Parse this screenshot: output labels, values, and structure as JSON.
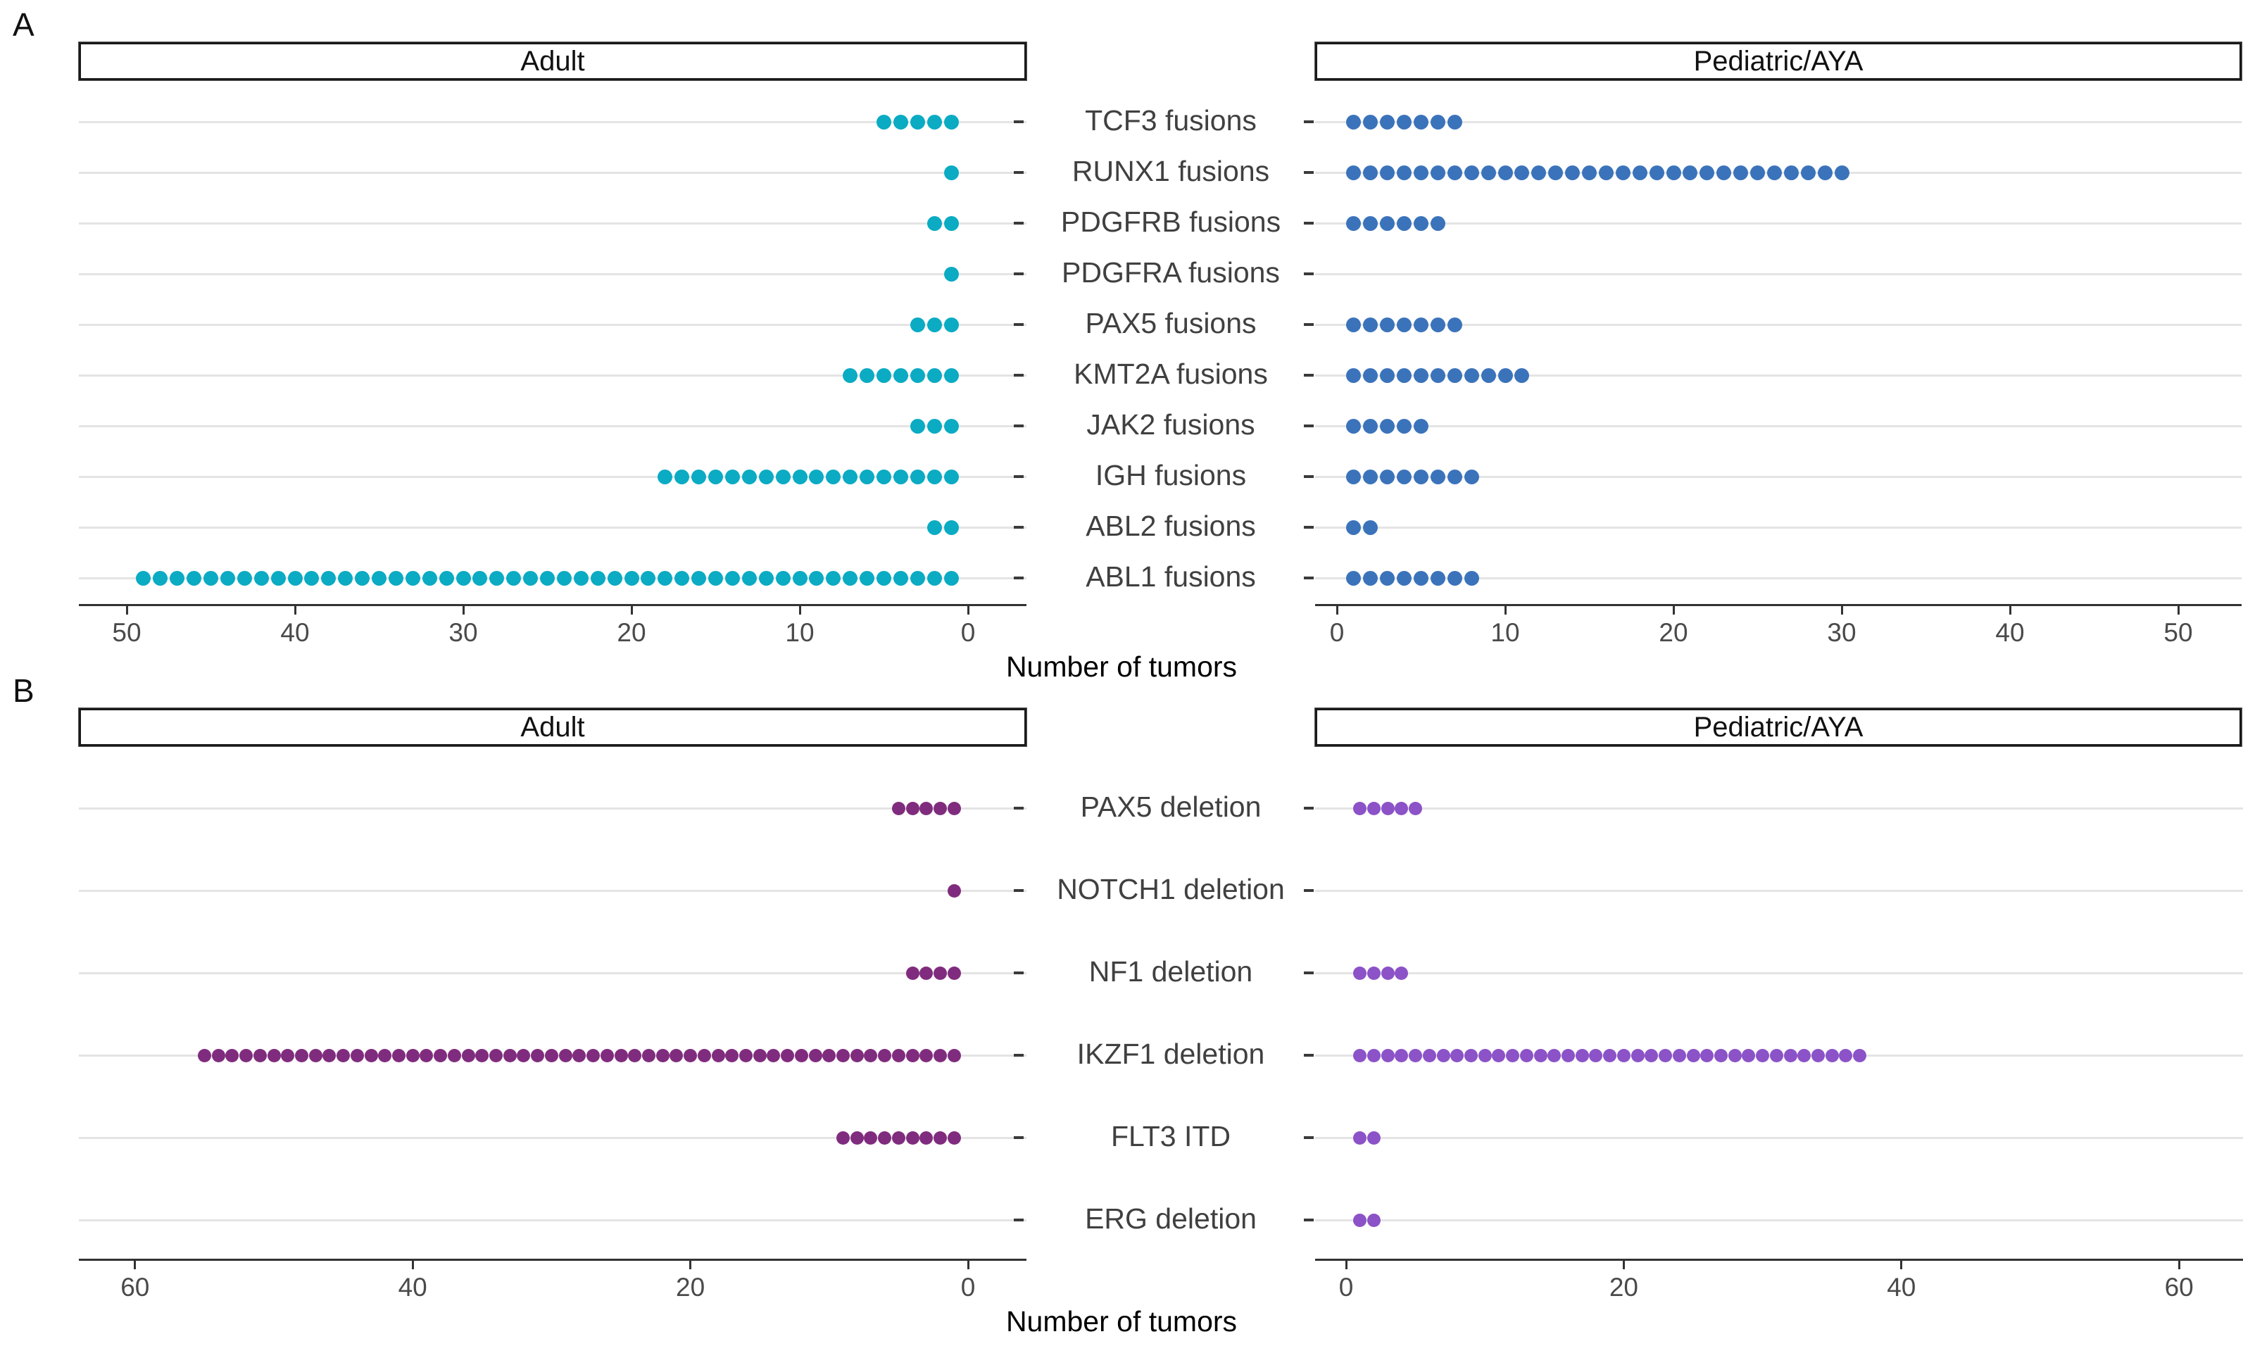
{
  "figure": {
    "section_a_label": "A",
    "section_b_label": "B",
    "column_headers": {
      "adult": "Adult",
      "pediatric": "Pediatric/AYA"
    },
    "x_axis_title": "Number of tumors"
  },
  "colors": {
    "adult_fusion_dot": "#0aabc3",
    "pediatric_fusion_dot": "#3b73bb",
    "adult_alteration_dot": "#802c7e",
    "pediatric_alteration_dot": "#8c52c7",
    "grid_line": "#e4e4e4",
    "axis_line": "#333333",
    "category_label": "#404040",
    "tick_label": "#4a4a4a"
  },
  "chart_data": [
    {
      "id": "panel_a",
      "type": "scatter",
      "subtype": "count-dot-plot",
      "section_label": "A",
      "categories": [
        "TCF3 fusions",
        "RUNX1 fusions",
        "PDGFRB fusions",
        "PDGFRA fusions",
        "PAX5 fusions",
        "KMT2A fusions",
        "JAK2 fusions",
        "IGH fusions",
        "ABL2 fusions",
        "ABL1 fusions"
      ],
      "series": [
        {
          "name": "Adult",
          "values": [
            5,
            1,
            2,
            1,
            3,
            7,
            3,
            18,
            2,
            49
          ],
          "axis_direction": "right-to-left",
          "x_ticks": [
            50,
            40,
            30,
            20,
            10,
            0
          ]
        },
        {
          "name": "Pediatric/AYA",
          "values": [
            7,
            30,
            6,
            0,
            7,
            11,
            5,
            8,
            2,
            8
          ],
          "axis_direction": "left-to-right",
          "x_ticks": [
            0,
            10,
            20,
            30,
            40,
            50
          ]
        }
      ],
      "dot_value": 1,
      "xlabel": "Number of tumors",
      "xlim": [
        0,
        50
      ],
      "grid": "horizontal-major-only",
      "legend": "none"
    },
    {
      "id": "panel_b",
      "type": "scatter",
      "subtype": "count-dot-plot",
      "section_label": "B",
      "categories": [
        "PAX5 deletion",
        "NOTCH1 deletion",
        "NF1 deletion",
        "IKZF1 deletion",
        "FLT3 ITD",
        "ERG deletion"
      ],
      "series": [
        {
          "name": "Adult",
          "values": [
            5,
            1,
            4,
            55,
            9,
            0
          ],
          "axis_direction": "right-to-left",
          "x_ticks": [
            60,
            40,
            20,
            0
          ]
        },
        {
          "name": "Pediatric/AYA",
          "values": [
            5,
            0,
            4,
            37,
            2,
            2
          ],
          "axis_direction": "left-to-right",
          "x_ticks": [
            0,
            20,
            40,
            60
          ]
        }
      ],
      "dot_value": 1,
      "xlabel": "Number of tumors",
      "xlim": [
        0,
        60
      ],
      "grid": "horizontal-major-only",
      "legend": "none"
    }
  ]
}
